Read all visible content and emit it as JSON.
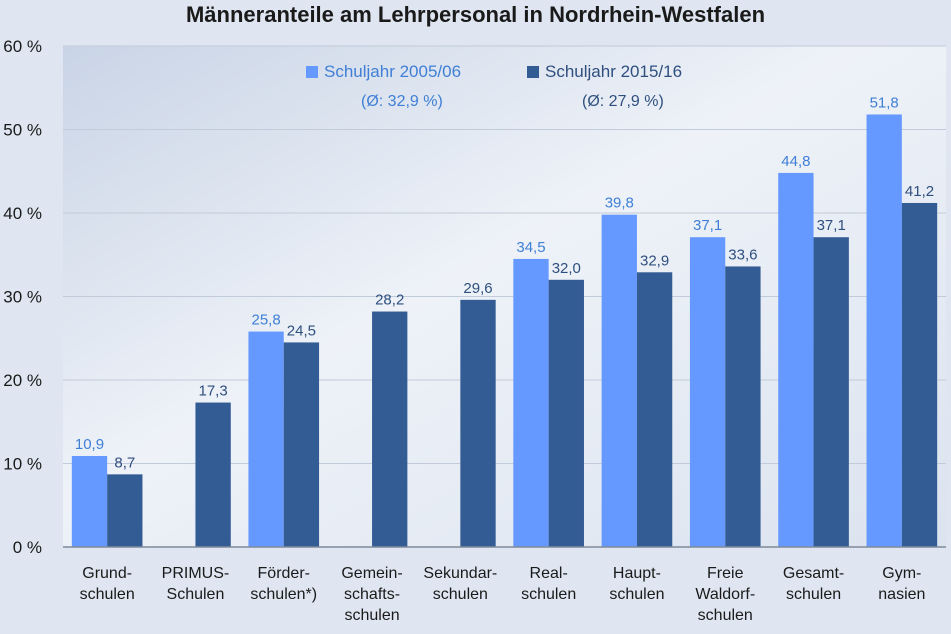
{
  "chart_data": {
    "type": "bar",
    "title": "Männeranteile am Lehrpersonal in Nordrhein-Westfalen",
    "xlabel": "",
    "ylabel": "",
    "ylim": [
      0,
      60
    ],
    "y_ticks": [
      "0 %",
      "10 %",
      "20 %",
      "30 %",
      "40 %",
      "50 %",
      "60 %"
    ],
    "grid": true,
    "legend_position": "top-center",
    "categories": [
      [
        "Grund-",
        "schulen"
      ],
      [
        "PRIMUS-",
        "Schulen"
      ],
      [
        "Förder-",
        "schulen*)"
      ],
      [
        "Gemein-",
        "schafts-",
        "schulen"
      ],
      [
        "Sekundar-",
        "schulen"
      ],
      [
        "Real-",
        "schulen"
      ],
      [
        "Haupt-",
        "schulen"
      ],
      [
        "Freie",
        "Waldorf-",
        "schulen"
      ],
      [
        "Gesamt-",
        "schulen"
      ],
      [
        "Gym-",
        "nasien"
      ]
    ],
    "series": [
      {
        "name": "Schuljahr 2005/06",
        "subtitle": "(Ø: 32,9 %)",
        "color": "#6699ff",
        "label_color": "#3f7fd6",
        "values": [
          10.9,
          null,
          25.8,
          null,
          null,
          34.5,
          39.8,
          37.1,
          44.8,
          51.8
        ],
        "labels": [
          "10,9",
          "",
          "25,8",
          "",
          "",
          "34,5",
          "39,8",
          "37,1",
          "44,8",
          "51,8"
        ]
      },
      {
        "name": "Schuljahr 2015/16",
        "subtitle": "(Ø: 27,9 %)",
        "color": "#335c94",
        "label_color": "#2f4f7f",
        "values": [
          8.7,
          17.3,
          24.5,
          28.2,
          29.6,
          32.0,
          32.9,
          33.6,
          37.1,
          41.2
        ],
        "labels": [
          "8,7",
          "17,3",
          "24,5",
          "28,2",
          "29,6",
          "32,0",
          "32,9",
          "33,6",
          "37,1",
          "41,2"
        ]
      }
    ]
  }
}
